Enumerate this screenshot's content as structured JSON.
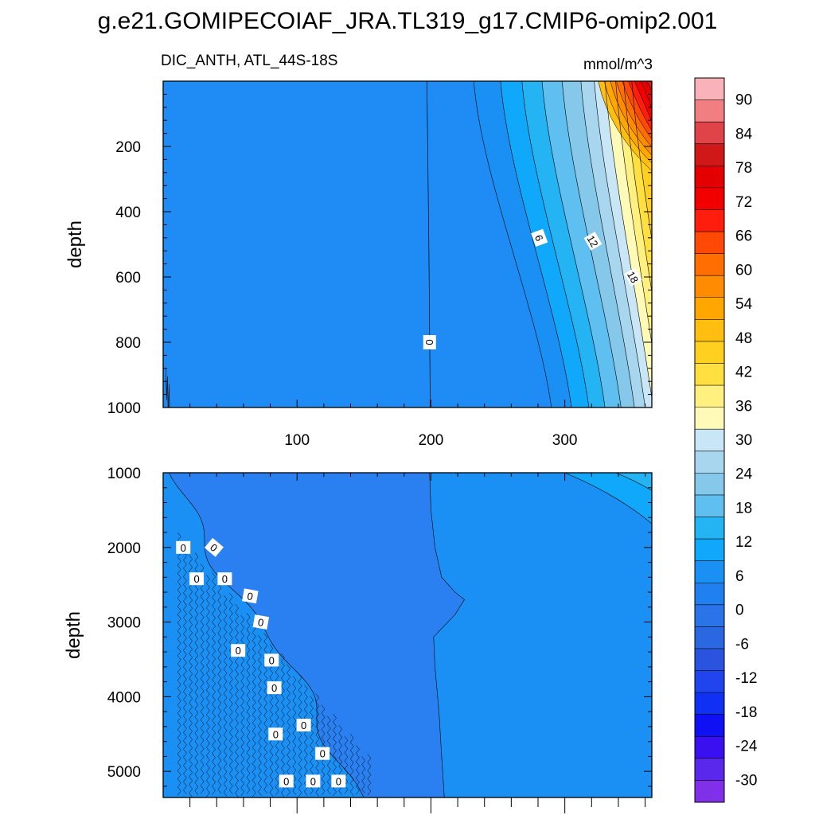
{
  "title": "g.e21.GOMIPECOIAF_JRA.TL319_g17.CMIP6-omip2.001",
  "subtitle_left": "DIC_ANTH, ATL_44S-18S",
  "units": "mmol/m^3",
  "colorbar": {
    "labels": [
      "90",
      "84",
      "78",
      "72",
      "66",
      "60",
      "54",
      "48",
      "42",
      "36",
      "30",
      "24",
      "18",
      "12",
      "6",
      "0",
      "-6",
      "-12",
      "-18",
      "-24",
      "-30"
    ],
    "colors": [
      "#f9b3b8",
      "#f17e80",
      "#e04448",
      "#d01818",
      "#e40000",
      "#f20000",
      "#ff1e0e",
      "#ff4a06",
      "#ff6e00",
      "#ff8c00",
      "#ffa600",
      "#ffbe10",
      "#ffd020",
      "#ffe040",
      "#fff080",
      "#fffab8",
      "#c8e6f6",
      "#a8d6ee",
      "#86c8ea",
      "#5ebff0",
      "#24b4f4",
      "#10a8fa",
      "#1a90f4",
      "#2080f0",
      "#2a74ea",
      "#2a68e2",
      "#2a54e0",
      "#2044ee",
      "#1030f4",
      "#1010f4",
      "#3a10f0",
      "#5a28ec",
      "#8030e8"
    ]
  },
  "chart_data": [
    {
      "type": "contour",
      "panel": "upper",
      "xlim": [
        0,
        365
      ],
      "ylim": [
        1000,
        0
      ],
      "x_ticks": [
        "100",
        "200",
        "300"
      ],
      "y_ticks": [
        "200",
        "400",
        "600",
        "800",
        "1000"
      ],
      "ylabel": "depth",
      "contour_labels": [
        "0",
        "6",
        "12",
        "18"
      ],
      "contour_levels": [
        -30,
        -27,
        -24,
        -21,
        -18,
        -15,
        -12,
        -9,
        -6,
        -3,
        0,
        3,
        6,
        9,
        12,
        15,
        18,
        21,
        24,
        27,
        30,
        33,
        36,
        39,
        42,
        45,
        48,
        51,
        54,
        57,
        60,
        63,
        66,
        69,
        72,
        75,
        78,
        81,
        84,
        87,
        90,
        93
      ]
    },
    {
      "type": "contour",
      "panel": "lower",
      "xlim": [
        0,
        365
      ],
      "ylim": [
        5350,
        1000
      ],
      "y_ticks": [
        "1000",
        "2000",
        "3000",
        "4000",
        "5000"
      ],
      "ylabel": "depth",
      "contour_labels": [
        "0",
        "0",
        "0",
        "0",
        "0",
        "0",
        "0",
        "0",
        "0",
        "0",
        "0",
        "0",
        "0",
        "0",
        "0"
      ],
      "contour_levels": [
        -3,
        0,
        3,
        6
      ]
    }
  ]
}
